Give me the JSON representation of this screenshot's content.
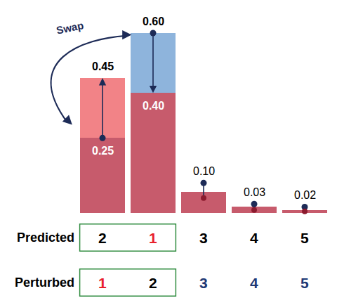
{
  "chart_data": {
    "type": "bar",
    "categories": [
      null,
      null,
      null,
      null,
      null
    ],
    "stacked": true,
    "tick_labels": false,
    "ylim": [
      0,
      0.6
    ],
    "series": [
      {
        "values": [
          0.25,
          0.4,
          0.07,
          0.02,
          0.01
        ],
        "color": "#c75b6c"
      },
      {
        "values": [
          0.2,
          null,
          null,
          null,
          null
        ],
        "color": "#f28387"
      },
      {
        "values": [
          null,
          0.2,
          null,
          null,
          null
        ],
        "color": "#8eb4dc"
      }
    ],
    "stems": [
      {
        "type": "arrow",
        "from": [
          0.25,
          0.6,
          null,
          null,
          null
        ],
        "to": [
          0.45,
          0.4,
          null,
          null,
          null
        ],
        "color": "#1d2b57"
      },
      {
        "type": "lollipop",
        "from": [
          null,
          null,
          0.1,
          0.03,
          0.02
        ],
        "to": [
          null,
          null,
          0.05,
          0.01,
          0.005
        ],
        "color": "#1d2b57",
        "end_color": "#8b1a2e"
      }
    ],
    "annotations": [
      {
        "x": 0,
        "y": 0.45,
        "text": "0.45",
        "color": "#000000"
      },
      {
        "x": 1,
        "y": 0.6,
        "text": "0.60",
        "color": "#000000"
      },
      {
        "x": 0,
        "y": 0.25,
        "text": "0.25",
        "color": "#ffffff"
      },
      {
        "x": 1,
        "y": 0.4,
        "text": "0.40",
        "color": "#ffffff"
      },
      {
        "x": 2,
        "y": 0.1,
        "text": "0.10",
        "color": "#000000"
      },
      {
        "x": 3,
        "y": 0.03,
        "text": "0.03",
        "color": "#000000"
      },
      {
        "x": 4,
        "y": 0.02,
        "text": "0.02",
        "color": "#000000"
      }
    ],
    "note": "Swap",
    "rows": [
      {
        "label": "Predicted",
        "cells": [
          "2",
          "1",
          "3",
          "4",
          "5"
        ],
        "colors": [
          "#000000",
          "#e8202a",
          "#000000",
          "#000000",
          "#000000"
        ]
      },
      {
        "label": "Perturbed",
        "cells": [
          "1",
          "2",
          "3",
          "4",
          "5"
        ],
        "colors": [
          "#e8202a",
          "#000000",
          "#1f3a75",
          "#1f3a75",
          "#1f3a75"
        ]
      }
    ]
  }
}
